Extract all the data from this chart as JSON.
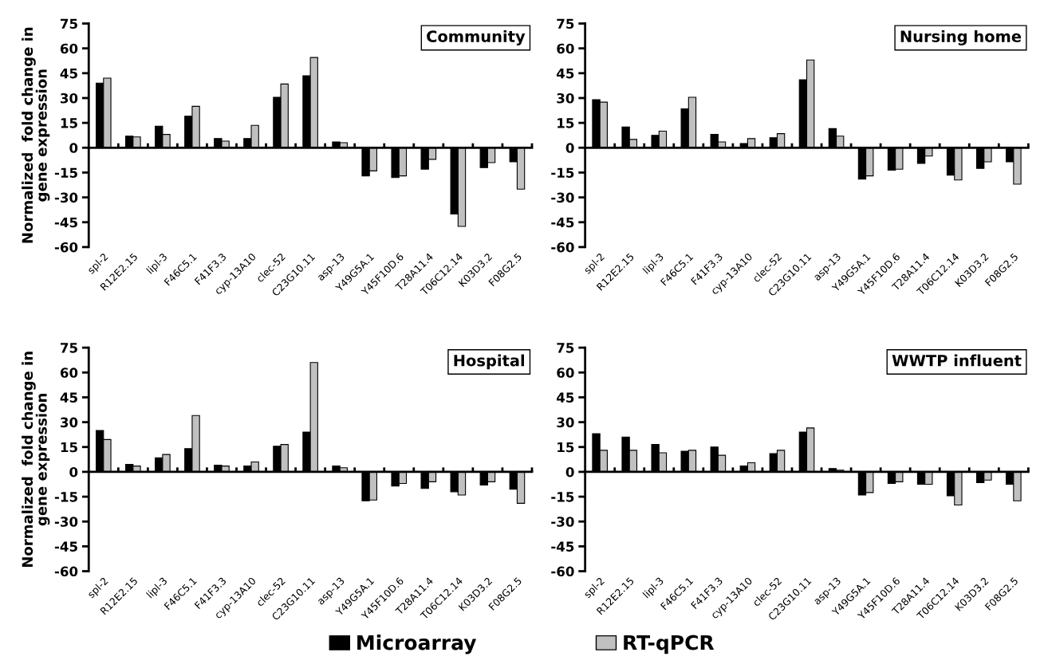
{
  "chart_data": [
    {
      "type": "bar",
      "title": "Community",
      "ylabel": "Normalized  fold change in\ngene expression",
      "legend": "bottom",
      "categories": [
        "spl-2",
        "R12E2.15",
        "lipl-3",
        "F46C5.1",
        "F41F3.3",
        "cyp-13A10",
        "clec-52",
        "C23G10.11",
        "asp-13",
        "Y49G5A.1",
        "Y45F10D.6",
        "T28A11.4",
        "T06C12.14",
        "K03D3.2",
        "F08G2.5"
      ],
      "ylim": [
        -60,
        75
      ],
      "yticks": [
        -60,
        -45,
        -30,
        -15,
        0,
        15,
        30,
        45,
        60,
        75
      ],
      "series": [
        {
          "name": "Microarray",
          "color": "#000000",
          "values": [
            39,
            7,
            13,
            19,
            5.5,
            5.5,
            30.5,
            43.5,
            3.5,
            -17,
            -18,
            -13,
            -40,
            -12,
            -8.5
          ]
        },
        {
          "name": "RT-qPCR",
          "color": "#c0c0c0",
          "values": [
            42,
            6.5,
            8,
            25,
            4,
            13.5,
            38.5,
            54.5,
            3,
            -14,
            -17,
            -7,
            -47.5,
            -9,
            -25
          ]
        }
      ]
    },
    {
      "type": "bar",
      "title": "Nursing home",
      "legend": "bottom",
      "categories": [
        "spl-2",
        "R12E2.15",
        "lipl-3",
        "F46C5.1",
        "F41F3.3",
        "cyp-13A10",
        "clec-52",
        "C23G10.11",
        "asp-13",
        "Y49G5A.1",
        "Y45F10D.6",
        "T28A11.4",
        "T06C12.14",
        "K03D3.2",
        "F08G2.5"
      ],
      "ylim": [
        -60,
        75
      ],
      "yticks": [
        -60,
        -45,
        -30,
        -15,
        0,
        15,
        30,
        45,
        60,
        75
      ],
      "series": [
        {
          "name": "Microarray",
          "color": "#000000",
          "values": [
            29,
            12.5,
            7.5,
            23.5,
            8,
            2.5,
            6,
            41,
            11.5,
            -19,
            -13.5,
            -9.5,
            -16.5,
            -12.5,
            -8.5
          ]
        },
        {
          "name": "RT-qPCR",
          "color": "#c0c0c0",
          "values": [
            27.5,
            5,
            10,
            30.5,
            3.5,
            5.5,
            8.5,
            53,
            7,
            -17,
            -13,
            -5,
            -19.5,
            -8.5,
            -22
          ]
        }
      ]
    },
    {
      "type": "bar",
      "title": "Hospital",
      "ylabel": "Normalized  fold change in\ngene expression",
      "legend": "bottom",
      "categories": [
        "spl-2",
        "R12E2.15",
        "lipl-3",
        "F46C5.1",
        "F41F3.3",
        "cyp-13A10",
        "clec-52",
        "C23G10.11",
        "asp-13",
        "Y49G5A.1",
        "Y45F10D.6",
        "T28A11.4",
        "T06C12.14",
        "K03D3.2",
        "F08G2.5"
      ],
      "ylim": [
        -60,
        75
      ],
      "yticks": [
        -60,
        -45,
        -30,
        -15,
        0,
        15,
        30,
        45,
        60,
        75
      ],
      "series": [
        {
          "name": "Microarray",
          "color": "#000000",
          "values": [
            25,
            4.5,
            8.5,
            14,
            4,
            3.5,
            15.5,
            24,
            3.5,
            -17.5,
            -8.5,
            -10,
            -12,
            -8,
            -10.5
          ]
        },
        {
          "name": "RT-qPCR",
          "color": "#c0c0c0",
          "values": [
            19.5,
            3.5,
            10.5,
            34,
            3.5,
            6,
            16.5,
            66,
            2.5,
            -17,
            -7,
            -6,
            -14,
            -6,
            -19
          ]
        }
      ]
    },
    {
      "type": "bar",
      "title": "WWTP influent",
      "categories": [
        "spl-2",
        "R12E2.15",
        "lipl-3",
        "F46C5.1",
        "F41F3.3",
        "cyp-13A10",
        "clec-52",
        "C23G10.11",
        "asp-13",
        "Y49G5A.1",
        "Y45F10D.6",
        "T28A11.4",
        "T06C12.14",
        "K03D3.2",
        "F08G2.5"
      ],
      "ylim": [
        -60,
        75
      ],
      "yticks": [
        -60,
        -45,
        -30,
        -15,
        0,
        15,
        30,
        45,
        60,
        75
      ],
      "legend": "bottom",
      "series": [
        {
          "name": "Microarray",
          "color": "#000000",
          "values": [
            23,
            21,
            16.5,
            12.5,
            15,
            3.5,
            11,
            24,
            2,
            -14,
            -7,
            -7.5,
            -14.5,
            -6.5,
            -7.5
          ]
        },
        {
          "name": "RT-qPCR",
          "color": "#c0c0c0",
          "values": [
            13,
            13,
            11.5,
            13,
            10,
            5.5,
            13,
            26.5,
            1,
            -12.5,
            -6,
            -7.5,
            -20,
            -5,
            -17.5
          ]
        }
      ]
    }
  ]
}
